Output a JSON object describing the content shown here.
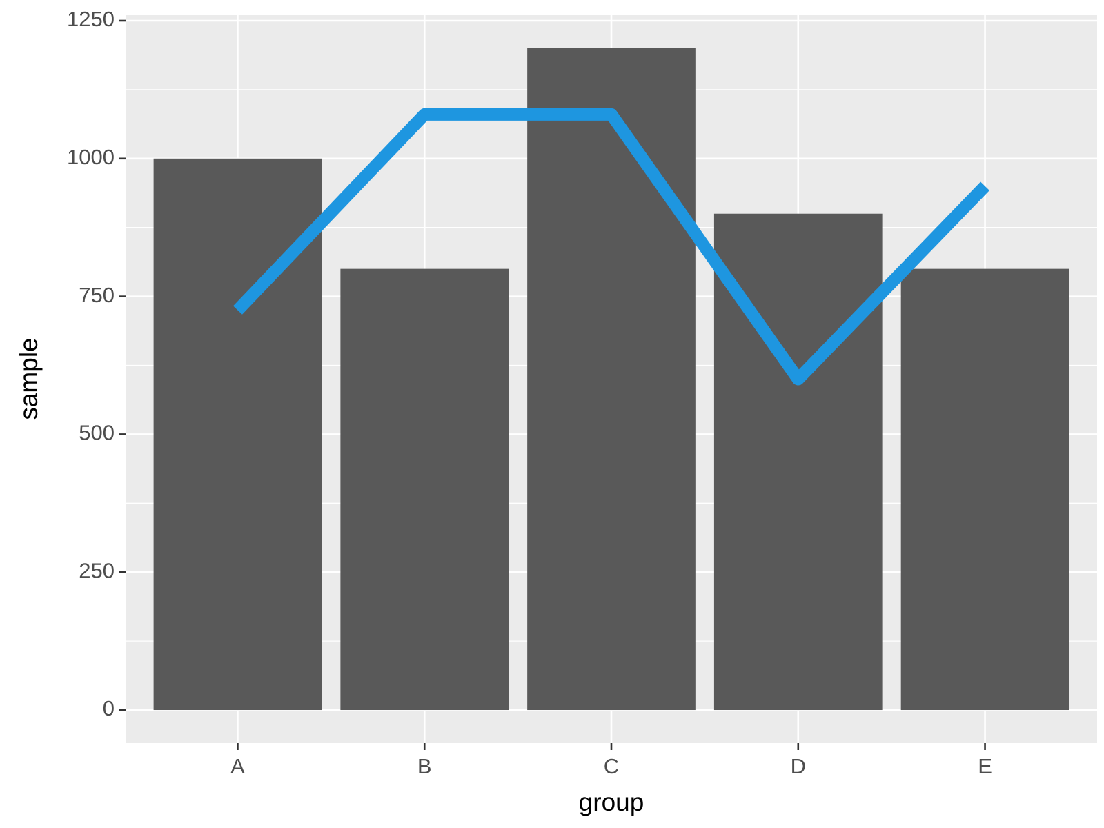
{
  "chart_data": {
    "type": "bar",
    "xlabel": "group",
    "ylabel": "sample",
    "categories": [
      "A",
      "B",
      "C",
      "D",
      "E"
    ],
    "series": [
      {
        "type": "bar",
        "color": "#595959",
        "values": [
          1000,
          800,
          1200,
          900,
          800
        ]
      },
      {
        "type": "line",
        "color": "#1e96e0",
        "values": [
          725,
          1080,
          1080,
          600,
          950
        ]
      }
    ],
    "ylim": [
      -60,
      1260
    ],
    "yticks": [
      0,
      250,
      500,
      750,
      1000,
      1250
    ],
    "minor_yticks": [
      125,
      375,
      625,
      875,
      1125
    ],
    "grid": true,
    "panel_color": "#ebebeb"
  }
}
